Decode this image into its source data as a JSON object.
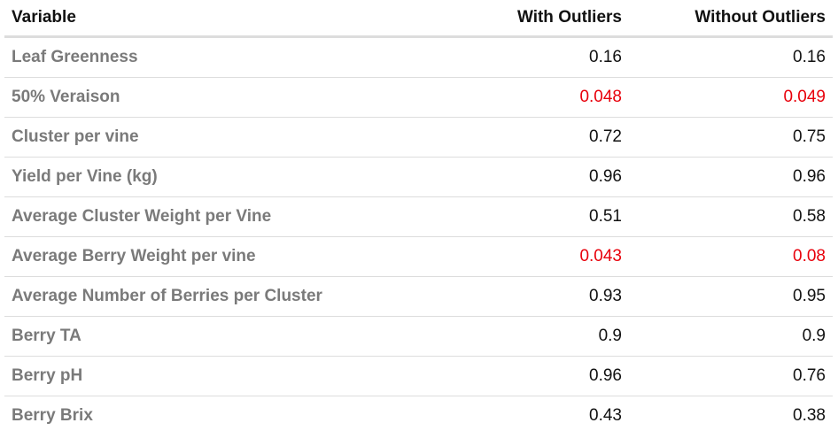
{
  "table": {
    "headers": {
      "variable": "Variable",
      "with_outliers": "With Outliers",
      "without_outliers": "Without Outliers"
    },
    "colors": {
      "significant": "#e8000b",
      "normal": "#111111",
      "variable_text": "#7a7a7a"
    },
    "rows": [
      {
        "variable": "Leaf Greenness",
        "with_outliers": "0.16",
        "without_outliers": "0.16",
        "with_sig": false,
        "without_sig": false
      },
      {
        "variable": "50% Veraison",
        "with_outliers": "0.048",
        "without_outliers": "0.049",
        "with_sig": true,
        "without_sig": true
      },
      {
        "variable": "Cluster per vine",
        "with_outliers": "0.72",
        "without_outliers": "0.75",
        "with_sig": false,
        "without_sig": false
      },
      {
        "variable": "Yield per Vine (kg)",
        "with_outliers": "0.96",
        "without_outliers": "0.96",
        "with_sig": false,
        "without_sig": false
      },
      {
        "variable": "Average Cluster Weight per Vine",
        "with_outliers": "0.51",
        "without_outliers": "0.58",
        "with_sig": false,
        "without_sig": false
      },
      {
        "variable": "Average Berry Weight per vine",
        "with_outliers": "0.043",
        "without_outliers": "0.08",
        "with_sig": true,
        "without_sig": true
      },
      {
        "variable": "Average Number of Berries per Cluster",
        "with_outliers": "0.93",
        "without_outliers": "0.95",
        "with_sig": false,
        "without_sig": false
      },
      {
        "variable": "Berry TA",
        "with_outliers": "0.9",
        "without_outliers": "0.9",
        "with_sig": false,
        "without_sig": false
      },
      {
        "variable": "Berry pH",
        "with_outliers": "0.96",
        "without_outliers": "0.76",
        "with_sig": false,
        "without_sig": false
      },
      {
        "variable": "Berry Brix",
        "with_outliers": "0.43",
        "without_outliers": "0.38",
        "with_sig": false,
        "without_sig": false
      }
    ]
  }
}
